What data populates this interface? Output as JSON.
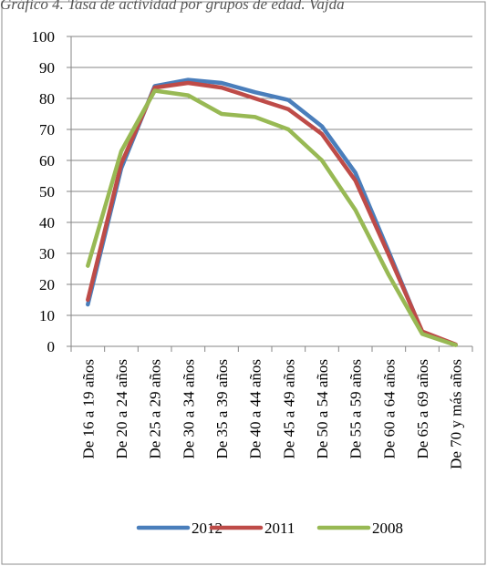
{
  "header": {
    "partial_title": "Gráfico 4. Tasa de actividad por grupos de edad. Vajda"
  },
  "chart_data": {
    "type": "line",
    "title": "",
    "xlabel": "",
    "ylabel": "",
    "ylim": [
      0,
      100
    ],
    "y_ticks": [
      0,
      10,
      20,
      30,
      40,
      50,
      60,
      70,
      80,
      90,
      100
    ],
    "grid": true,
    "legend_position": "bottom",
    "categories": [
      "De 16 a 19 años",
      "De 20 a 24 años",
      "De 25 a 29 años",
      "De 30 a 34 años",
      "De 35 a 39 años",
      "De 40 a 44 años",
      "De 45 a 49 años",
      "De 50 a 54 años",
      "De 55 a 59 años",
      "De 60 a 64 años",
      "De 65 a 69 años",
      "De 70 y más años"
    ],
    "series": [
      {
        "name": "2012",
        "color": "#4A7EBB",
        "values": [
          13.5,
          57.5,
          84.0,
          86.0,
          85.0,
          82.0,
          79.5,
          71.0,
          56.0,
          30.5,
          4.5,
          0.5
        ]
      },
      {
        "name": "2011",
        "color": "#BE4B48",
        "values": [
          15.0,
          59.0,
          83.5,
          85.0,
          83.5,
          80.0,
          76.5,
          68.5,
          53.5,
          29.5,
          4.8,
          0.6
        ]
      },
      {
        "name": "2008",
        "color": "#98B954",
        "values": [
          26.0,
          63.0,
          82.5,
          81.0,
          75.0,
          74.0,
          70.0,
          60.0,
          44.0,
          23.0,
          4.0,
          0.4
        ]
      }
    ]
  }
}
